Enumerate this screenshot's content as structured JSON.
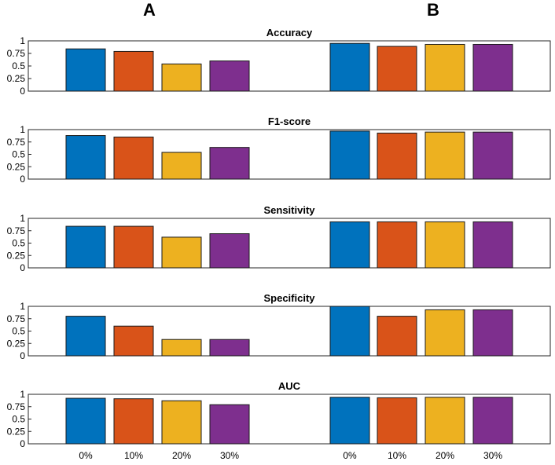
{
  "panel_labels": {
    "left": "A",
    "right": "B"
  },
  "x_labels": [
    "0%",
    "10%",
    "20%",
    "30%"
  ],
  "colors": [
    "#0072BD",
    "#D95319",
    "#EDB120",
    "#7E2F8E"
  ],
  "chart_data": {
    "type": "bar",
    "categories": [
      "0%",
      "10%",
      "20%",
      "30%"
    ],
    "ylim": [
      0,
      1
    ],
    "yticks": [
      "0",
      "0.25",
      "0.5",
      "0.75",
      "1"
    ],
    "panels": [
      "A",
      "B"
    ],
    "subplots": [
      {
        "title": "Accuracy",
        "A": [
          0.84,
          0.79,
          0.54,
          0.6
        ],
        "B": [
          0.95,
          0.89,
          0.93,
          0.93
        ]
      },
      {
        "title": "F1-score",
        "A": [
          0.88,
          0.85,
          0.54,
          0.64
        ],
        "B": [
          0.97,
          0.93,
          0.95,
          0.95
        ]
      },
      {
        "title": "Sensitivity",
        "A": [
          0.84,
          0.84,
          0.62,
          0.69
        ],
        "B": [
          0.93,
          0.93,
          0.93,
          0.93
        ]
      },
      {
        "title": "Specificity",
        "A": [
          0.8,
          0.6,
          0.33,
          0.33
        ],
        "B": [
          1.0,
          0.8,
          0.93,
          0.93
        ]
      },
      {
        "title": "AUC",
        "A": [
          0.92,
          0.91,
          0.87,
          0.79
        ],
        "B": [
          0.94,
          0.93,
          0.94,
          0.94
        ]
      }
    ]
  }
}
